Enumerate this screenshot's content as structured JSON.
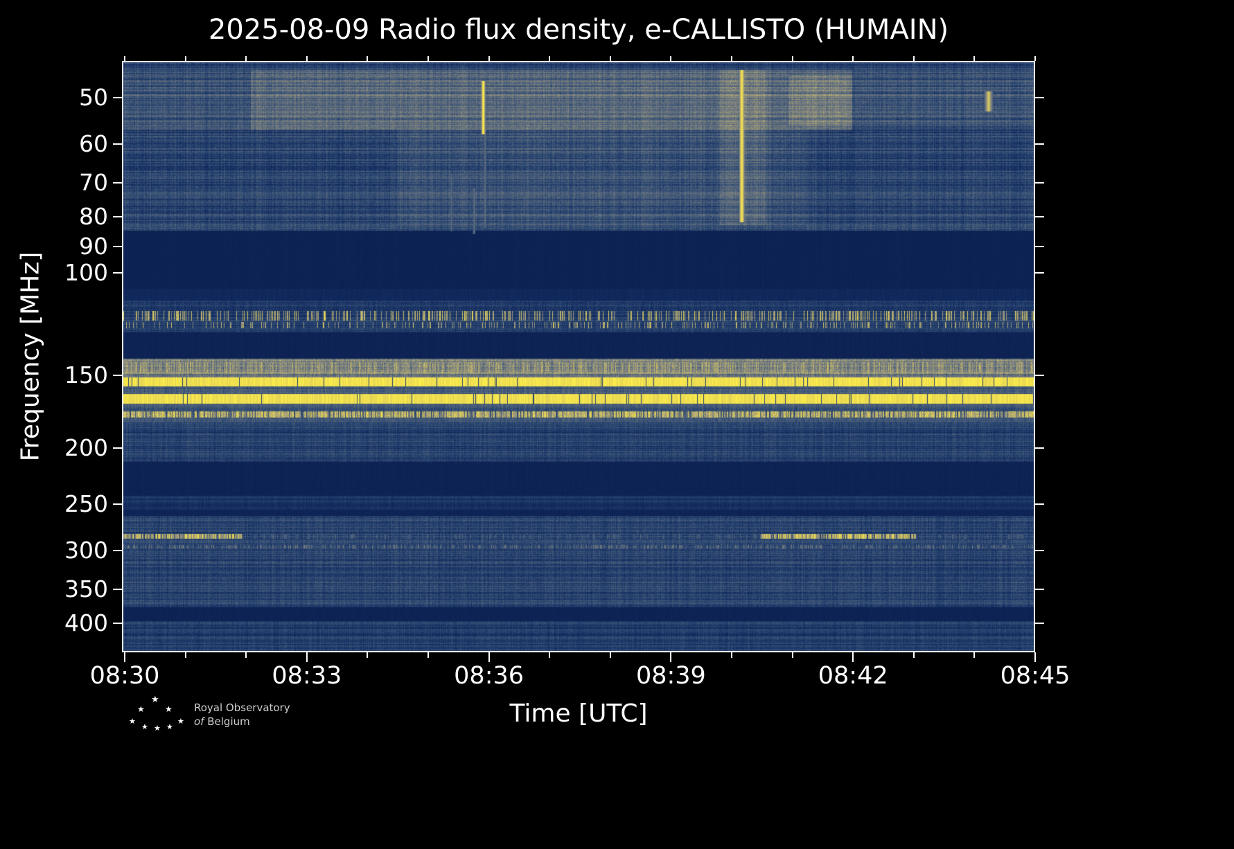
{
  "title": "2025-08-09 Radio flux density, e-CALLISTO (HUMAIN)",
  "xlabel": "Time [UTC]",
  "ylabel": "Frequency [MHz]",
  "logo": {
    "star_icon": "★",
    "line1": "Royal Observatory",
    "line2_italic": "of",
    "line2_rest": "Belgium"
  },
  "chart_data": {
    "type": "heatmap",
    "subtype": "radio-spectrogram",
    "title": "2025-08-09 Radio flux density, e-CALLISTO (HUMAIN)",
    "instrument": "e-CALLISTO (HUMAIN)",
    "date": "2025-08-09",
    "xlabel": "Time [UTC]",
    "ylabel": "Frequency [MHz]",
    "x_ticks": [
      {
        "label": "08:30",
        "t": 0
      },
      {
        "label": "08:33",
        "t": 0.2
      },
      {
        "label": "08:36",
        "t": 0.4
      },
      {
        "label": "08:39",
        "t": 0.6
      },
      {
        "label": "08:42",
        "t": 0.8
      },
      {
        "label": "08:45",
        "t": 1
      }
    ],
    "x_minor_divisions": 15,
    "y_ticks": [
      {
        "label": "50",
        "f": 50
      },
      {
        "label": "60",
        "f": 60
      },
      {
        "label": "70",
        "f": 70
      },
      {
        "label": "80",
        "f": 80
      },
      {
        "label": "90",
        "f": 90
      },
      {
        "label": "100",
        "f": 100
      },
      {
        "label": "150",
        "f": 150
      },
      {
        "label": "200",
        "f": 200
      },
      {
        "label": "250",
        "f": 250
      },
      {
        "label": "300",
        "f": 300
      },
      {
        "label": "350",
        "f": 350
      },
      {
        "label": "400",
        "f": 400
      }
    ],
    "freq_axis": {
      "min": 43.7,
      "max": 449,
      "scale": "log",
      "unit": "MHz"
    },
    "time_axis": {
      "start": "08:30",
      "end": "08:45",
      "unit": "UTC"
    },
    "colormap": [
      [
        0,
        "#081a46"
      ],
      [
        0.15,
        "#122a5e"
      ],
      [
        0.3,
        "#2e4a74"
      ],
      [
        0.5,
        "#6e7880"
      ],
      [
        0.65,
        "#a59f79"
      ],
      [
        0.8,
        "#e3d256"
      ],
      [
        1,
        "#fff04a"
      ]
    ],
    "bands": [
      {
        "f0": 43.7,
        "f1": 85,
        "base": 0.16,
        "noise": 0.22
      },
      {
        "f0": 85,
        "f1": 107,
        "base": 0.07,
        "noise": 0.04
      },
      {
        "f0": 107,
        "f1": 112,
        "base": 0.1,
        "noise": 0.08
      },
      {
        "f0": 112,
        "f1": 127,
        "base": 0.15,
        "noise": 0.18
      },
      {
        "f0": 127,
        "f1": 141,
        "base": 0.07,
        "noise": 0.05
      },
      {
        "f0": 141,
        "f1": 152,
        "base": 0.38,
        "noise": 0.28
      },
      {
        "f0": 152,
        "f1": 181,
        "base": 0.24,
        "noise": 0.2
      },
      {
        "f0": 181,
        "f1": 212,
        "base": 0.17,
        "noise": 0.18
      },
      {
        "f0": 212,
        "f1": 243,
        "base": 0.07,
        "noise": 0.05
      },
      {
        "f0": 243,
        "f1": 256,
        "base": 0.14,
        "noise": 0.12
      },
      {
        "f0": 256,
        "f1": 263,
        "base": 0.08,
        "noise": 0.05
      },
      {
        "f0": 263,
        "f1": 377,
        "base": 0.17,
        "noise": 0.2
      },
      {
        "f0": 377,
        "f1": 399,
        "base": 0.07,
        "noise": 0.05
      },
      {
        "f0": 399,
        "f1": 449,
        "base": 0.15,
        "noise": 0.17
      }
    ],
    "lines": [
      {
        "f": 119,
        "df": 2,
        "type": "speckle",
        "prob": 0.3,
        "intensity": 0.92
      },
      {
        "f": 123.5,
        "df": 1.5,
        "type": "speckle",
        "prob": 0.18,
        "intensity": 0.85
      },
      {
        "f": 146,
        "df": 3,
        "type": "speckle",
        "prob": 0.6,
        "intensity": 0.8
      },
      {
        "f": 154.5,
        "df": 2.5,
        "type": "solid",
        "prob": 1,
        "intensity": 1.0
      },
      {
        "f": 165.5,
        "df": 3,
        "type": "solid",
        "prob": 1,
        "intensity": 0.98
      },
      {
        "f": 176,
        "df": 2,
        "type": "speckle",
        "prob": 0.75,
        "intensity": 0.95
      },
      {
        "f": 297,
        "df": 1.5,
        "type": "speckle",
        "prob": 0.35,
        "intensity": 0.6
      },
      {
        "f": 285,
        "df": 2,
        "type": "speckle",
        "prob": 0.3,
        "intensity": 0.5
      }
    ],
    "segments": [
      {
        "f": 285,
        "df": 2.5,
        "t0": 0.0,
        "t1": 0.13,
        "intensity": 0.85
      },
      {
        "f": 285,
        "df": 2.5,
        "t0": 0.7,
        "t1": 0.87,
        "intensity": 0.9
      }
    ],
    "events": [
      {
        "t": 0.395,
        "f0": 47,
        "f1": 58,
        "w": 3,
        "intensity": 1.0
      },
      {
        "t": 0.397,
        "f0": 58,
        "f1": 84,
        "w": 2,
        "intensity": 0.5
      },
      {
        "t": 0.679,
        "f0": 45,
        "f1": 82,
        "w": 4,
        "intensity": 0.95
      },
      {
        "t": 0.36,
        "f0": 68,
        "f1": 85,
        "w": 2,
        "intensity": 0.45
      },
      {
        "t": 0.385,
        "f0": 72,
        "f1": 86,
        "w": 2,
        "intensity": 0.5
      },
      {
        "t": 0.44,
        "f0": 70,
        "f1": 80,
        "w": 2,
        "intensity": 0.4
      },
      {
        "t": 0.95,
        "f0": 49,
        "f1": 53,
        "w": 6,
        "intensity": 0.8
      }
    ],
    "haze": [
      {
        "t0": 0.14,
        "t1": 0.8,
        "f0": 45,
        "f1": 57,
        "add": 0.2
      },
      {
        "t0": 0.0,
        "t1": 0.14,
        "f0": 45,
        "f1": 57,
        "add": 0.09
      },
      {
        "t0": 0.8,
        "t1": 1.0,
        "f0": 45,
        "f1": 56,
        "add": 0.09
      },
      {
        "t0": 0.3,
        "t1": 0.75,
        "f0": 57,
        "f1": 83,
        "add": 0.07
      },
      {
        "t0": 0.655,
        "t1": 0.705,
        "f0": 45,
        "f1": 83,
        "add": 0.1
      },
      {
        "t0": 0.73,
        "t1": 0.8,
        "f0": 46,
        "f1": 56,
        "add": 0.1
      }
    ]
  }
}
